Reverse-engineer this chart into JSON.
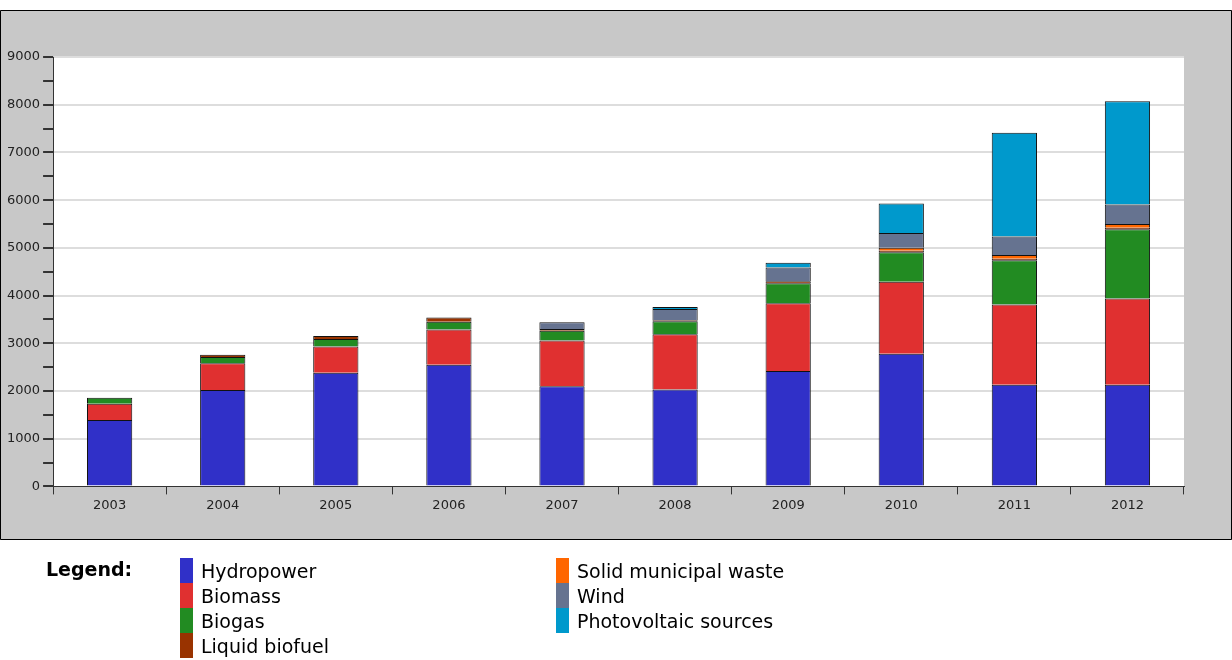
{
  "chart_data": {
    "type": "bar",
    "stacked": true,
    "legend": "bottom",
    "legend_title": "Legend:",
    "grid": "y",
    "categories": [
      "2003",
      "2004",
      "2005",
      "2006",
      "2007",
      "2008",
      "2009",
      "2010",
      "2011",
      "2012"
    ],
    "ylim": [
      0,
      9000
    ],
    "yticks": [
      0,
      {
        "value": 500,
        "label": null
      },
      1000,
      {
        "value": 1500,
        "label": null
      },
      2000,
      {
        "value": 2500,
        "label": null
      },
      3000,
      {
        "value": 3500,
        "label": null
      },
      4000,
      {
        "value": 4500,
        "label": null
      },
      5000,
      {
        "value": 5500,
        "label": null
      },
      6000,
      {
        "value": 6500,
        "label": null
      },
      7000,
      {
        "value": 7500,
        "label": null
      },
      8000,
      {
        "value": 8500,
        "label": null
      },
      9000
    ],
    "series": [
      {
        "name": "Hydropower",
        "color": "#3030c8",
        "values": [
          1390,
          2020,
          2380,
          2550,
          2100,
          2030,
          2420,
          2780,
          2130,
          2130
        ]
      },
      {
        "name": "Biomass",
        "color": "#e03030",
        "values": [
          340,
          560,
          550,
          740,
          960,
          1160,
          1420,
          1510,
          1680,
          1810
        ]
      },
      {
        "name": "Biogas",
        "color": "#228b22",
        "values": [
          130,
          130,
          160,
          160,
          200,
          270,
          420,
          620,
          930,
          1450
        ]
      },
      {
        "name": "Liquid biofuel",
        "color": "#993300",
        "values": [
          null,
          50,
          60,
          90,
          40,
          20,
          40,
          30,
          30,
          30
        ]
      },
      {
        "name": "Solid municipal waste",
        "color": "#ff6600",
        "values": [
          0,
          0,
          0,
          0,
          0,
          0,
          0,
          60,
          80,
          80
        ]
      },
      {
        "name": "Wind",
        "color": "#667390",
        "values": [
          0,
          0,
          0,
          0,
          140,
          240,
          290,
          310,
          390,
          410
        ]
      },
      {
        "name": "Photovoltaic sources",
        "color": "#0099cc",
        "values": [
          0,
          0,
          0,
          0,
          0,
          40,
          100,
          620,
          2170,
          2160
        ]
      }
    ]
  }
}
